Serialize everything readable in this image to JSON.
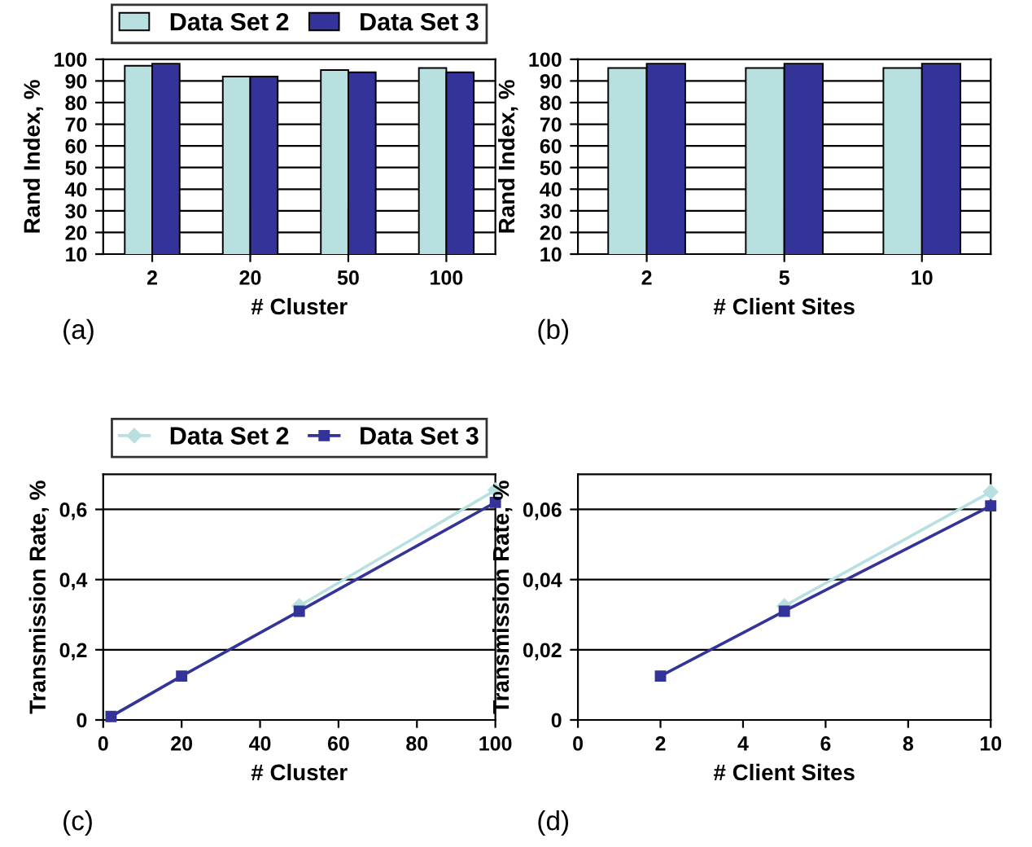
{
  "chart_data": [
    {
      "type": "bar",
      "categories": [
        "2",
        "20",
        "50",
        "100"
      ],
      "xlabel": "# Cluster",
      "ylabel": "Rand Index, %",
      "ylim": [
        10,
        100
      ],
      "yticks": [
        10,
        20,
        30,
        40,
        50,
        60,
        70,
        80,
        90,
        100
      ],
      "grid": "y",
      "legend": "top",
      "annotations": [
        "(a)"
      ],
      "series": [
        {
          "name": "Data Set 2",
          "color": "#b8e0e0",
          "values": [
            97,
            92,
            95,
            96
          ]
        },
        {
          "name": "Data Set 3",
          "color": "#333399",
          "values": [
            98,
            92,
            94,
            94
          ]
        }
      ]
    },
    {
      "type": "bar",
      "categories": [
        "2",
        "5",
        "10"
      ],
      "xlabel": "# Client Sites",
      "ylabel": "Rand Index, %",
      "ylim": [
        10,
        100
      ],
      "yticks": [
        10,
        20,
        30,
        40,
        50,
        60,
        70,
        80,
        90,
        100
      ],
      "grid": "y",
      "annotations": [
        "(b)"
      ],
      "series": [
        {
          "color": "#b8e0e0",
          "values": [
            96,
            96,
            96
          ]
        },
        {
          "color": "#333399",
          "values": [
            98,
            98,
            98
          ]
        }
      ]
    },
    {
      "type": "line",
      "x": [
        2,
        20,
        50,
        100
      ],
      "xlabel": "# Cluster",
      "ylabel": "Transmission Rate, %",
      "xlim": [
        0,
        100
      ],
      "xticks": [
        0,
        20,
        40,
        60,
        80,
        100
      ],
      "ylim": [
        0,
        0.7
      ],
      "yticks": [
        {
          "value": 0,
          "label": "0"
        },
        {
          "value": 0.2,
          "label": "0,2"
        },
        {
          "value": 0.4,
          "label": "0,4"
        },
        {
          "value": 0.6,
          "label": "0,6"
        }
      ],
      "grid": "y",
      "legend": "top",
      "annotations": [
        "(c)"
      ],
      "series": [
        {
          "name": "Data Set 2",
          "color": "#b8e0e0",
          "marker": "diamond",
          "values": [
            null,
            null,
            0.325,
            0.655
          ]
        },
        {
          "name": "Data Set 3",
          "color": "#333399",
          "marker": "square",
          "values": [
            0.01,
            0.125,
            0.31,
            0.62
          ]
        }
      ]
    },
    {
      "type": "line",
      "x": [
        2,
        5,
        10
      ],
      "xlabel": "# Client Sites",
      "ylabel": "Transmission Rate, %",
      "xlim": [
        0,
        10
      ],
      "xticks": [
        0,
        2,
        4,
        6,
        8,
        10
      ],
      "ylim": [
        0,
        0.07
      ],
      "yticks": [
        {
          "value": 0,
          "label": "0"
        },
        {
          "value": 0.02,
          "label": "0,02"
        },
        {
          "value": 0.04,
          "label": "0,04"
        },
        {
          "value": 0.06,
          "label": "0,06"
        }
      ],
      "grid": "y",
      "annotations": [
        "(d)"
      ],
      "series": [
        {
          "color": "#b8e0e0",
          "marker": "diamond",
          "values": [
            null,
            0.0325,
            0.065
          ]
        },
        {
          "color": "#333399",
          "marker": "square",
          "values": [
            0.0125,
            0.031,
            0.061
          ]
        }
      ]
    }
  ]
}
